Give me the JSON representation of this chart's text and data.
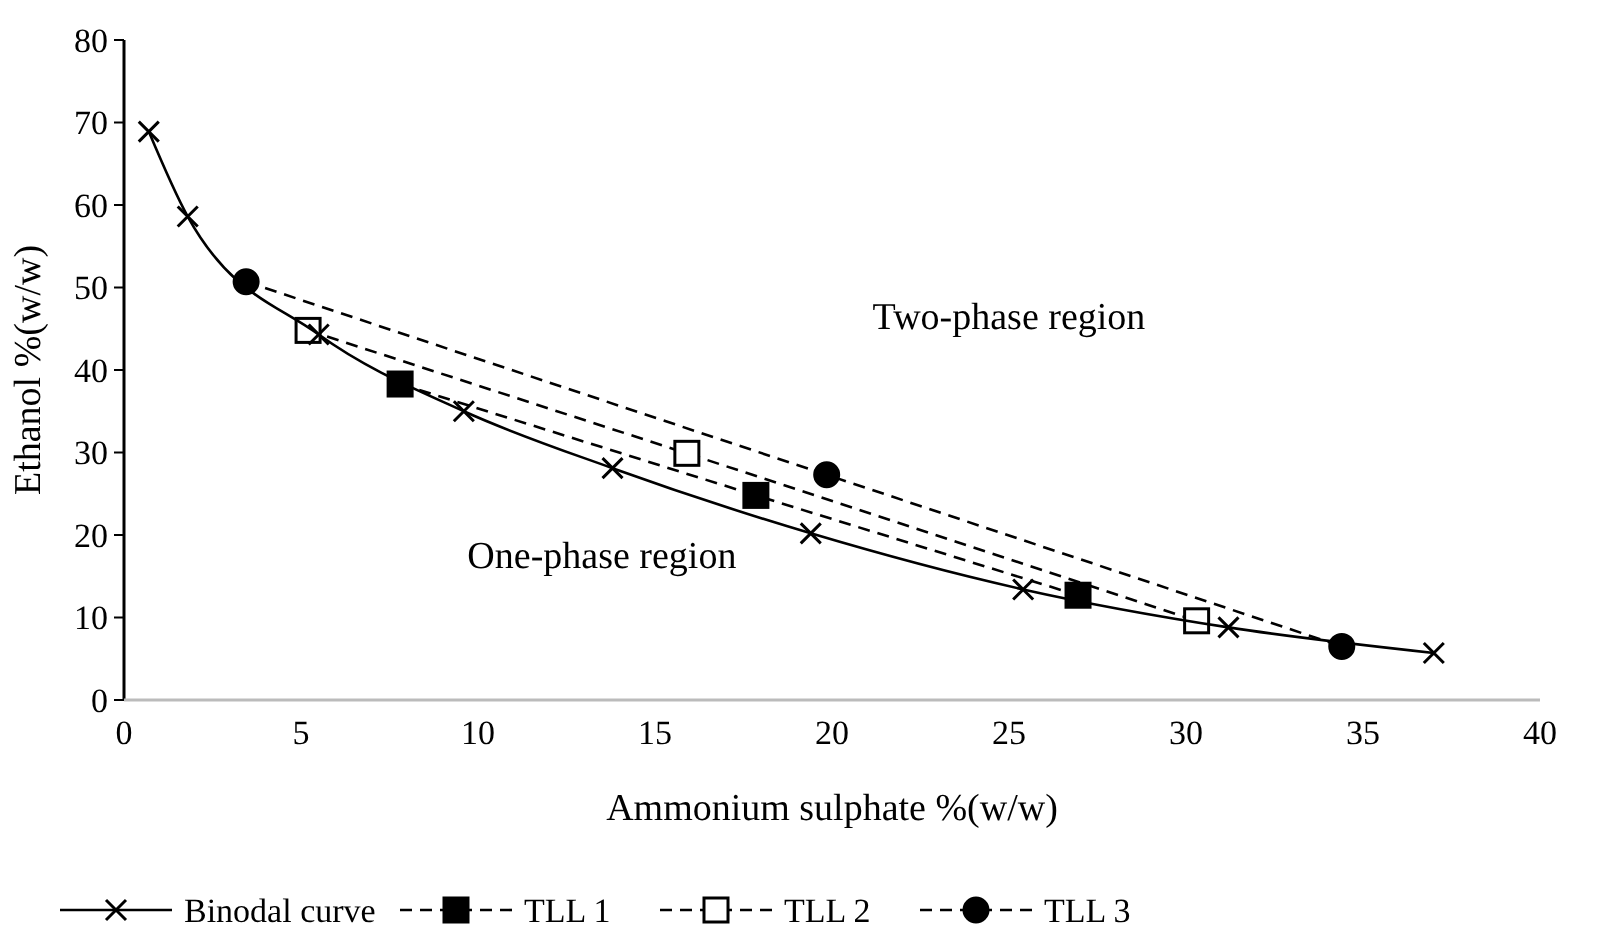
{
  "chart_data": {
    "type": "line",
    "xlabel": "Ammonium sulphate %(w/w)",
    "ylabel": "Ethanol %(w/w)",
    "xlim": [
      0,
      40
    ],
    "xticks": [
      0,
      5,
      10,
      15,
      20,
      25,
      30,
      35,
      40
    ],
    "ylim": [
      0,
      80
    ],
    "yticks": [
      0,
      10,
      20,
      30,
      40,
      50,
      60,
      70,
      80
    ],
    "grid": false,
    "legend": "bottom",
    "annotations": [
      "Two-phase region",
      "One-phase region"
    ],
    "series": [
      {
        "name": "Binodal curve",
        "color": "#000000",
        "marker": "cross",
        "line_style": "solid",
        "x": [
          0.7,
          1.8,
          5.5,
          9.6,
          13.8,
          19.4,
          25.4,
          31.2,
          37.0
        ],
        "values": [
          68.9,
          58.6,
          44.3,
          35.0,
          28.1,
          20.2,
          13.4,
          8.8,
          5.7
        ]
      },
      {
        "name": "TLL 1",
        "color": "#000000",
        "marker": "square",
        "line_style": "dashed",
        "x": [
          7.8,
          17.85,
          26.95
        ],
        "values": [
          38.3,
          24.8,
          12.7
        ]
      },
      {
        "name": "TLL 2",
        "color": "#000000",
        "marker": "square",
        "line_style": "dashed",
        "x": [
          5.2,
          15.9,
          30.3
        ],
        "values": [
          44.8,
          29.9,
          9.6
        ]
      },
      {
        "name": "TLL 3",
        "color": "#000000",
        "marker": "circle",
        "line_style": "dashed",
        "x": [
          3.45,
          19.85,
          34.4
        ],
        "values": [
          50.7,
          27.3,
          6.5
        ]
      }
    ]
  }
}
